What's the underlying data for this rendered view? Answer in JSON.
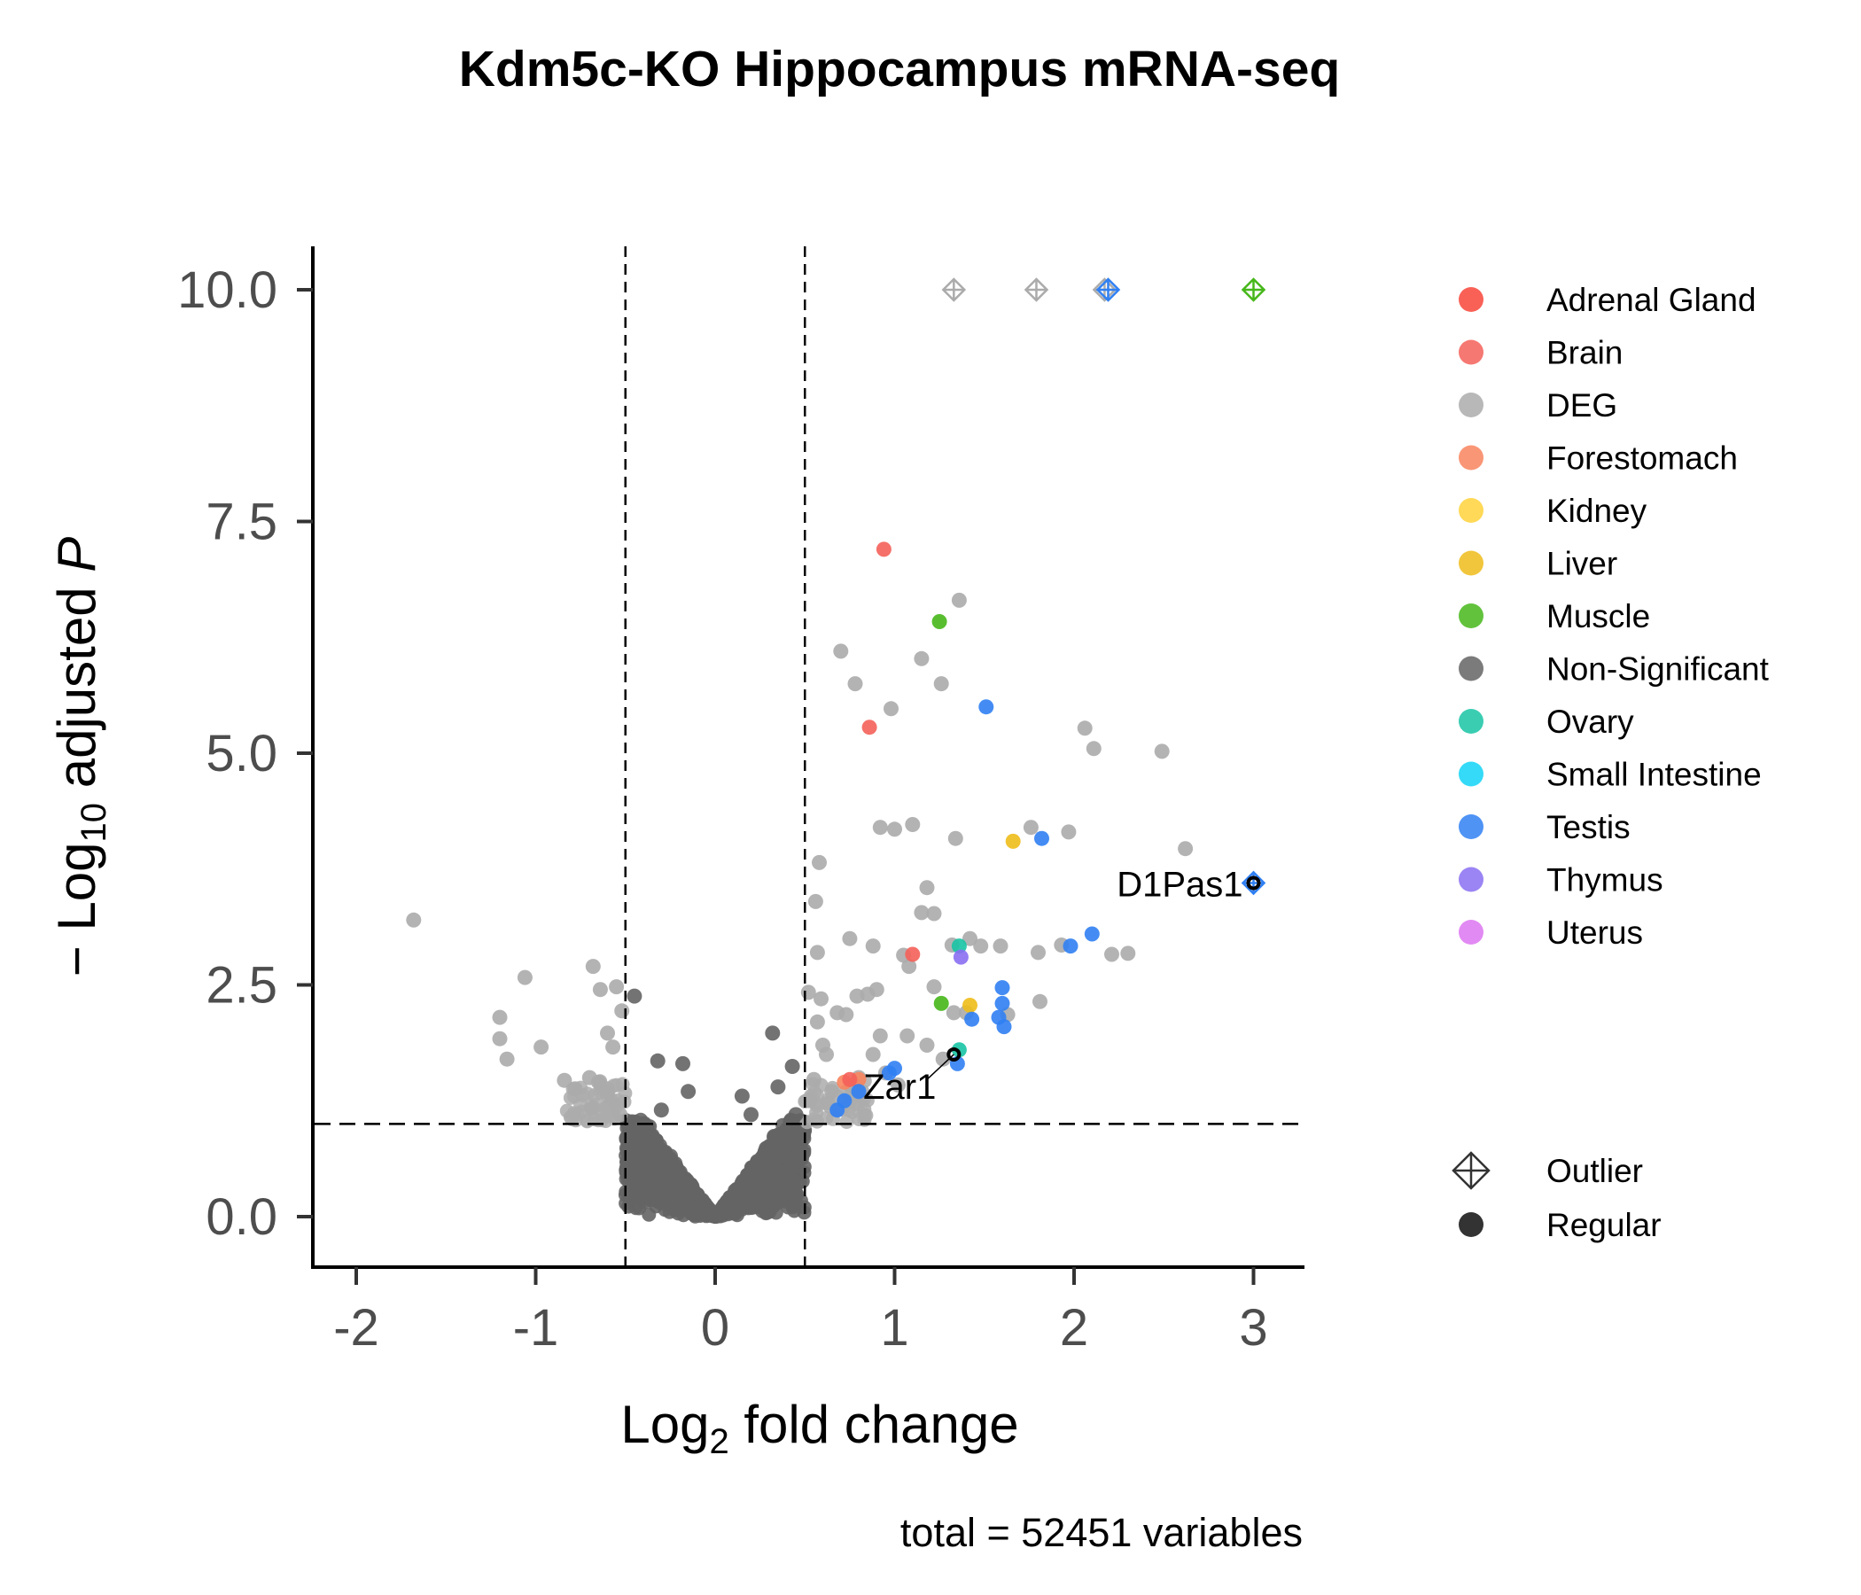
{
  "chart_data": {
    "type": "scatter",
    "title": "Kdm5c-KO Hippocampus mRNA-seq",
    "xlabel": {
      "base": "Log",
      "sub": "2",
      "rest": " fold change"
    },
    "ylabel": {
      "prefix": "− Log",
      "sub": "10",
      "mid": " adjusted ",
      "italic": "P"
    },
    "caption": "total = 52451 variables",
    "xlim": [
      -2.25,
      3.25
    ],
    "ylim": [
      -0.5,
      10.5
    ],
    "x_ticks": [
      -2,
      -1,
      0,
      1,
      2,
      3
    ],
    "x_tick_labels": [
      "-2",
      "-1",
      "0",
      "1",
      "2",
      "3"
    ],
    "y_ticks": [
      0,
      2.5,
      5,
      7.5,
      10
    ],
    "y_tick_labels": [
      "0.0",
      "2.5",
      "5.0",
      "7.5",
      "10.0"
    ],
    "cutoffs": {
      "log2fc": [
        -0.5,
        0.5
      ],
      "neg_log10_padj": 1.0
    },
    "grid": false,
    "legend_placement": "right",
    "categories": [
      {
        "name": "Adrenal Gland",
        "color": "#F8453A"
      },
      {
        "name": "Brain",
        "color": "#F46059"
      },
      {
        "name": "DEG",
        "color": "#ABABAB"
      },
      {
        "name": "Forestomach",
        "color": "#F8845E"
      },
      {
        "name": "Kidney",
        "color": "#FFD23A"
      },
      {
        "name": "Liver",
        "color": "#EEBC1A"
      },
      {
        "name": "Muscle",
        "color": "#46B71A"
      },
      {
        "name": "Non-Significant",
        "color": "#646464"
      },
      {
        "name": "Ovary",
        "color": "#18C4A4"
      },
      {
        "name": "Small Intestine",
        "color": "#11D4F6"
      },
      {
        "name": "Testis",
        "color": "#3080F3"
      },
      {
        "name": "Thymus",
        "color": "#8A6EF2"
      },
      {
        "name": "Uterus",
        "color": "#DD75F1"
      }
    ],
    "shape_legend": [
      {
        "name": "Outlier",
        "shape": "diamond-cross"
      },
      {
        "name": "Regular",
        "shape": "circle"
      }
    ],
    "series": [
      {
        "name": "Brain",
        "points": [
          [
            0.94,
            7.2
          ],
          [
            0.86,
            5.28
          ],
          [
            1.1,
            2.83
          ],
          [
            0.75,
            1.48
          ]
        ]
      },
      {
        "name": "Muscle",
        "points": [
          [
            1.25,
            6.42
          ],
          [
            1.26,
            2.3
          ]
        ]
      },
      {
        "name": "Testis",
        "points": [
          [
            1.51,
            5.5
          ],
          [
            1.82,
            4.08
          ],
          [
            2.1,
            3.05
          ],
          [
            1.98,
            2.92
          ],
          [
            1.6,
            2.47
          ],
          [
            1.6,
            2.3
          ],
          [
            1.43,
            2.13
          ],
          [
            1.58,
            2.15
          ],
          [
            1.61,
            2.05
          ],
          [
            1.0,
            1.6
          ],
          [
            0.97,
            1.55
          ],
          [
            0.8,
            1.35
          ],
          [
            0.68,
            1.15
          ],
          [
            0.72,
            1.25
          ],
          [
            1.35,
            1.65
          ]
        ]
      },
      {
        "name": "Liver",
        "points": [
          [
            1.66,
            4.05
          ],
          [
            1.42,
            2.28
          ]
        ]
      },
      {
        "name": "Ovary",
        "points": [
          [
            1.36,
            2.92
          ],
          [
            1.36,
            1.8
          ]
        ]
      },
      {
        "name": "Thymus",
        "points": [
          [
            1.37,
            2.8
          ]
        ]
      },
      {
        "name": "Forestomach",
        "points": [
          [
            0.72,
            1.45
          ],
          [
            0.8,
            1.48
          ]
        ]
      },
      {
        "name": "DEG",
        "points": [
          [
            1.36,
            6.65
          ],
          [
            0.7,
            6.1
          ],
          [
            1.15,
            6.02
          ],
          [
            0.78,
            5.75
          ],
          [
            1.26,
            5.75
          ],
          [
            0.98,
            5.48
          ],
          [
            2.06,
            5.27
          ],
          [
            2.11,
            5.05
          ],
          [
            2.49,
            5.02
          ],
          [
            0.92,
            4.2
          ],
          [
            1.0,
            4.18
          ],
          [
            1.1,
            4.23
          ],
          [
            1.34,
            4.08
          ],
          [
            1.76,
            4.2
          ],
          [
            1.97,
            4.15
          ],
          [
            2.62,
            3.97
          ],
          [
            0.58,
            3.82
          ],
          [
            1.18,
            3.55
          ],
          [
            0.56,
            3.4
          ],
          [
            1.15,
            3.28
          ],
          [
            1.22,
            3.27
          ],
          [
            0.75,
            3.0
          ],
          [
            0.88,
            2.92
          ],
          [
            1.32,
            2.93
          ],
          [
            1.42,
            3.0
          ],
          [
            1.48,
            2.92
          ],
          [
            1.59,
            2.92
          ],
          [
            1.8,
            2.85
          ],
          [
            1.93,
            2.93
          ],
          [
            2.21,
            2.83
          ],
          [
            2.3,
            2.84
          ],
          [
            0.57,
            2.85
          ],
          [
            1.05,
            2.82
          ],
          [
            1.08,
            2.7
          ],
          [
            1.22,
            2.48
          ],
          [
            0.52,
            2.42
          ],
          [
            0.59,
            2.35
          ],
          [
            0.68,
            2.2
          ],
          [
            0.73,
            2.18
          ],
          [
            0.85,
            2.4
          ],
          [
            0.9,
            2.45
          ],
          [
            0.79,
            2.38
          ],
          [
            1.4,
            2.2
          ],
          [
            1.33,
            2.2
          ],
          [
            1.63,
            2.18
          ],
          [
            1.81,
            2.32
          ],
          [
            0.6,
            1.85
          ],
          [
            0.62,
            1.75
          ],
          [
            0.57,
            2.1
          ],
          [
            0.92,
            1.95
          ],
          [
            1.07,
            1.95
          ],
          [
            1.18,
            1.85
          ],
          [
            1.27,
            1.7
          ],
          [
            0.8,
            1.5
          ],
          [
            0.88,
            1.75
          ],
          [
            0.95,
            1.55
          ],
          [
            1.02,
            1.42
          ],
          [
            0.65,
            1.35
          ],
          [
            0.55,
            1.48
          ],
          [
            0.53,
            1.25
          ],
          [
            -1.68,
            3.2
          ],
          [
            -0.68,
            2.7
          ],
          [
            -0.55,
            2.48
          ],
          [
            -0.64,
            2.45
          ],
          [
            -1.06,
            2.58
          ],
          [
            -1.2,
            2.15
          ],
          [
            -1.2,
            1.92
          ],
          [
            -1.16,
            1.7
          ],
          [
            -0.52,
            2.22
          ],
          [
            -0.6,
            1.98
          ],
          [
            -0.57,
            1.83
          ],
          [
            -0.97,
            1.83
          ],
          [
            -0.84,
            1.47
          ],
          [
            -0.78,
            1.38
          ],
          [
            -0.7,
            1.5
          ],
          [
            -0.65,
            1.45
          ],
          [
            -0.6,
            1.38
          ],
          [
            -0.55,
            1.2
          ],
          [
            -0.69,
            1.18
          ],
          [
            -0.6,
            1.3
          ],
          [
            -0.53,
            1.1
          ]
        ]
      },
      {
        "name": "Non-Significant",
        "points": [
          [
            -0.45,
            2.38
          ],
          [
            -0.32,
            1.68
          ],
          [
            -0.18,
            1.65
          ],
          [
            0.32,
            1.98
          ],
          [
            0.43,
            1.62
          ],
          [
            -0.3,
            1.15
          ],
          [
            -0.15,
            1.35
          ],
          [
            0.2,
            1.1
          ],
          [
            0.35,
            1.4
          ],
          [
            -0.4,
            1.0
          ],
          [
            0.45,
            1.1
          ],
          [
            0.15,
            1.3
          ]
        ]
      }
    ],
    "outliers": [
      {
        "x": 1.33,
        "y": 10.0,
        "color": "#ABABAB"
      },
      {
        "x": 1.79,
        "y": 10.0,
        "color": "#ABABAB"
      },
      {
        "x": 2.17,
        "y": 10.0,
        "color": "#ABABAB"
      },
      {
        "x": 2.19,
        "y": 10.0,
        "color": "#3080F3"
      },
      {
        "x": 3.0,
        "y": 10.0,
        "color": "#46B71A"
      },
      {
        "x": 3.0,
        "y": 3.6,
        "color": "#3080F3"
      }
    ],
    "labeled_genes": [
      {
        "label": "D1Pas1",
        "x": 3.0,
        "y": 3.6
      },
      {
        "label": "Zar1",
        "x": 1.33,
        "y": 1.75
      }
    ]
  }
}
